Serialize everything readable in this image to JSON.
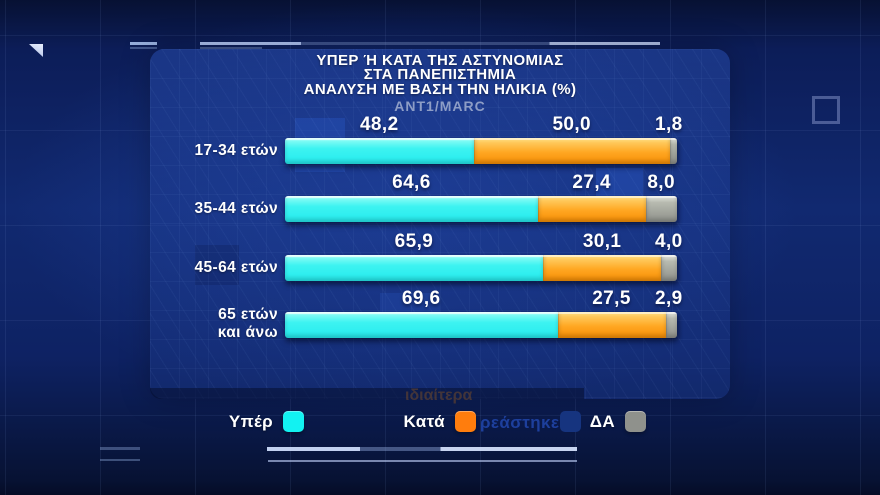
{
  "header": {
    "title_lines": [
      "ΥΠΕΡ Ή ΚΑΤΑ ΤΗΣ ΑΣΤΥΝΟΜΙΑΣ",
      "ΣΤΑ ΠΑΝΕΠΙΣΤΗΜΙΑ",
      "ΑΝΑΛΥΣΗ ΜΕ ΒΑΣΗ ΤΗΝ ΗΛΙΚΙΑ (%)"
    ],
    "source": "ANT1/MARC"
  },
  "chart_data": {
    "type": "bar",
    "orientation": "horizontal",
    "stacked": true,
    "unit": "%",
    "title": "ΥΠΕΡ Ή ΚΑΤΑ ΤΗΣ ΑΣΤΥΝΟΜΙΑΣ ΣΤΑ ΠΑΝΕΠΙΣΤΗΜΙΑ — ΑΝΑΛΥΣΗ ΜΕ ΒΑΣΗ ΤΗΝ ΗΛΙΚΙΑ (%)",
    "source": "ANT1/MARC",
    "xlim": [
      0,
      100
    ],
    "grid": false,
    "legend_position": "bottom",
    "categories": [
      "17-34 ετών",
      "35-44 ετών",
      "45-64 ετών",
      "65 ετών και άνω"
    ],
    "category_display_lines": [
      [
        "17-34 ετών"
      ],
      [
        "35-44 ετών"
      ],
      [
        "45-64 ετών"
      ],
      [
        "65 ετών",
        "και άνω"
      ]
    ],
    "series": [
      {
        "name": "Υπέρ",
        "color": "#2beef0",
        "values": [
          48.2,
          64.6,
          65.9,
          69.6
        ],
        "display": [
          "48,2",
          "64,6",
          "65,9",
          "69,6"
        ]
      },
      {
        "name": "Κατά",
        "color": "#ff9517",
        "values": [
          50.0,
          27.4,
          30.1,
          27.5
        ],
        "display": [
          "50,0",
          "27,4",
          "30,1",
          "27,5"
        ]
      },
      {
        "name": "ΔΑ",
        "color": "#999d95",
        "values": [
          1.8,
          8.0,
          4.0,
          2.9
        ],
        "display": [
          "1,8",
          "8,0",
          "4,0",
          "2,9"
        ]
      }
    ]
  },
  "legend": {
    "items": [
      {
        "label": "Υπέρ",
        "color": "#12f2f2"
      },
      {
        "label": "Κατά",
        "color": "#ff7d0d"
      },
      {
        "label": "ΔΑ",
        "color": "#8f918c"
      }
    ],
    "ghost_text": "ρεάστηκε",
    "ghost_text_2": "ιδιαίτερα"
  },
  "colors": {
    "background": "#0e2263",
    "panel": "#1e3e96",
    "title_text": "#ffffff",
    "source_text": "#8d9dc6",
    "value_text": "#ffffff",
    "ghost_text": "#1d3f9c"
  }
}
